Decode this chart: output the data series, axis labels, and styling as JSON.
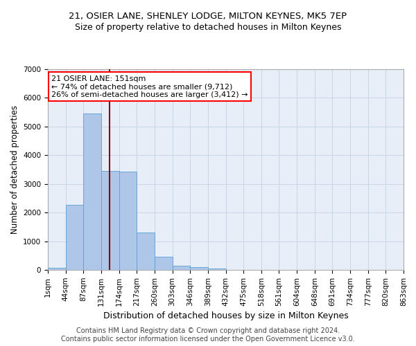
{
  "title1": "21, OSIER LANE, SHENLEY LODGE, MILTON KEYNES, MK5 7EP",
  "title2": "Size of property relative to detached houses in Milton Keynes",
  "xlabel": "Distribution of detached houses by size in Milton Keynes",
  "ylabel": "Number of detached properties",
  "bar_color": "#aec6e8",
  "bar_edge_color": "#5a9fd4",
  "bar_values": [
    75,
    2270,
    5460,
    3440,
    3430,
    1300,
    460,
    150,
    90,
    50,
    0,
    0,
    0,
    0,
    0,
    0,
    0,
    0,
    0,
    0
  ],
  "categories": [
    "1sqm",
    "44sqm",
    "87sqm",
    "131sqm",
    "174sqm",
    "217sqm",
    "260sqm",
    "303sqm",
    "346sqm",
    "389sqm",
    "432sqm",
    "475sqm",
    "518sqm",
    "561sqm",
    "604sqm",
    "648sqm",
    "691sqm",
    "734sqm",
    "777sqm",
    "820sqm",
    "863sqm"
  ],
  "ylim": [
    0,
    7000
  ],
  "yticks": [
    0,
    1000,
    2000,
    3000,
    4000,
    5000,
    6000,
    7000
  ],
  "annotation_text": "21 OSIER LANE: 151sqm\n← 74% of detached houses are smaller (9,712)\n26% of semi-detached houses are larger (3,412) →",
  "annotation_box_color": "white",
  "annotation_box_edge_color": "red",
  "vline_color": "#8b0000",
  "footer_text": "Contains HM Land Registry data © Crown copyright and database right 2024.\nContains public sector information licensed under the Open Government Licence v3.0.",
  "background_color": "#e8eef8",
  "grid_color": "#c8d4e8",
  "title1_fontsize": 9.5,
  "title2_fontsize": 9,
  "xlabel_fontsize": 9,
  "ylabel_fontsize": 8.5,
  "footer_fontsize": 7,
  "tick_fontsize": 7.5,
  "annot_fontsize": 8
}
